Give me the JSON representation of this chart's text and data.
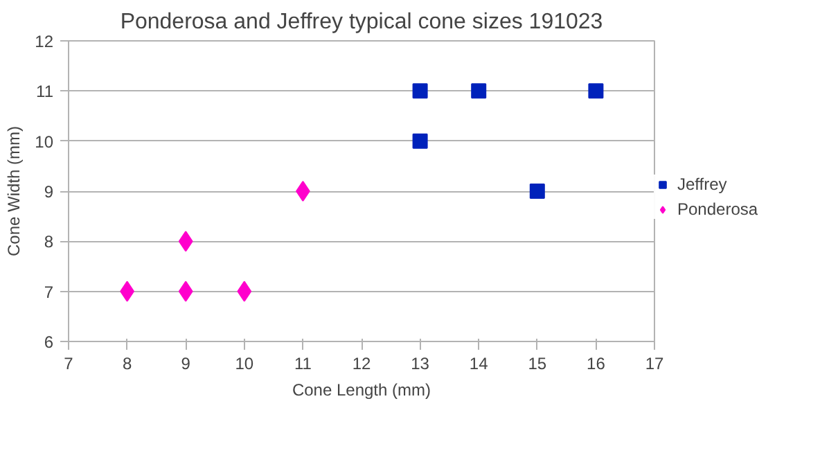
{
  "chart_data": {
    "type": "scatter",
    "title": "Ponderosa and Jeffrey typical cone sizes 191023",
    "xlabel": "Cone Length (mm)",
    "ylabel": "Cone Width (mm)",
    "xlim": [
      7,
      17
    ],
    "xticks": [
      7,
      8,
      9,
      10,
      11,
      12,
      13,
      14,
      15,
      16,
      17
    ],
    "ylim": [
      6,
      12
    ],
    "yticks": [
      6,
      7,
      8,
      9,
      10,
      11,
      12
    ],
    "grid": "y",
    "legend": "right",
    "series": [
      {
        "name": "Jeffrey",
        "color": "#0022bb",
        "marker": "square",
        "x": [
          13,
          13,
          14,
          15,
          16
        ],
        "values": [
          11,
          10,
          11,
          9,
          11
        ]
      },
      {
        "name": "Ponderosa",
        "color": "#ff00cc",
        "marker": "diamond",
        "x": [
          8,
          9,
          9,
          10,
          11
        ],
        "values": [
          7,
          8,
          7,
          7,
          9
        ]
      }
    ]
  }
}
